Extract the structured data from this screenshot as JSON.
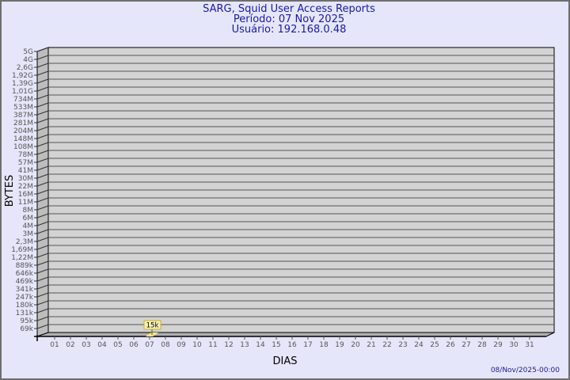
{
  "chart_data": {
    "type": "bar",
    "title": [
      "SARG, Squid User Access Reports",
      "Período: 07 Nov 2025",
      "Usuário: 192.168.0.48"
    ],
    "xlabel": "DIAS",
    "ylabel": "BYTES",
    "categories": [
      "01",
      "02",
      "03",
      "04",
      "05",
      "06",
      "07",
      "08",
      "09",
      "10",
      "11",
      "12",
      "13",
      "14",
      "15",
      "16",
      "17",
      "18",
      "19",
      "20",
      "21",
      "22",
      "23",
      "24",
      "25",
      "26",
      "27",
      "28",
      "29",
      "30",
      "31"
    ],
    "values": [
      0,
      0,
      0,
      0,
      0,
      0,
      15000,
      0,
      0,
      0,
      0,
      0,
      0,
      0,
      0,
      0,
      0,
      0,
      0,
      0,
      0,
      0,
      0,
      0,
      0,
      0,
      0,
      0,
      0,
      0,
      0
    ],
    "data_labels": {
      "07": "15k"
    },
    "y_tick_labels": [
      "5G",
      "4G",
      "2,6G",
      "1,92G",
      "1,39G",
      "1,01G",
      "734M",
      "533M",
      "387M",
      "281M",
      "204M",
      "148M",
      "108M",
      "78M",
      "57M",
      "41M",
      "30M",
      "22M",
      "16M",
      "11M",
      "8M",
      "6M",
      "4M",
      "3M",
      "2,3M",
      "1,69M",
      "1,22M",
      "889k",
      "646k",
      "469k",
      "341k",
      "247k",
      "180k",
      "131k",
      "95k",
      "69k"
    ],
    "grid": true,
    "legend": "none",
    "colors": {
      "background": "#e6e6fa",
      "plot": "#d3d3d3",
      "bar": "#ffe680",
      "title": "#1a1aa6"
    }
  },
  "footer": {
    "timestamp": "08/Nov/2025-00:00"
  }
}
